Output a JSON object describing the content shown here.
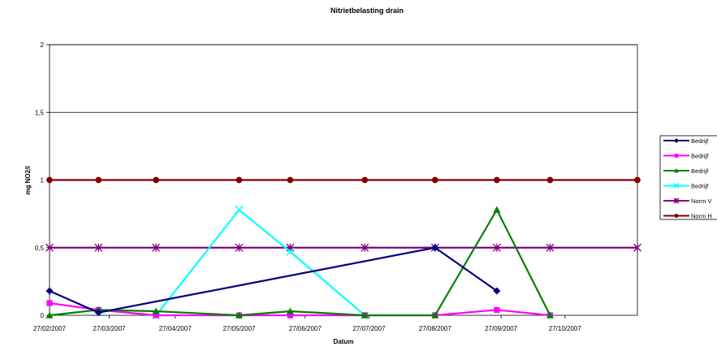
{
  "chart_data": {
    "type": "line",
    "title": "Nitrietbelasting drain",
    "xlabel": "Datum",
    "ylabel": "mg NO2/l",
    "ylim": [
      0,
      2
    ],
    "yticks": [
      "0",
      "0,5",
      "1",
      "1,5",
      "2"
    ],
    "xlim": [
      "2007-02-27",
      "2007-11-30"
    ],
    "xticks": [
      "27/02/2007",
      "27/03/2007",
      "27/04/2007",
      "27/05/2007",
      "27/06/2007",
      "27/07/2007",
      "27/08/2007",
      "27/09/2007",
      "27/10/2007"
    ],
    "grid": "horizontal",
    "legend_position": "right",
    "series": [
      {
        "name": "Bedrijf",
        "color": "#000080",
        "marker": "diamond",
        "x": [
          "2007-02-27",
          "2007-03-22",
          "2007-08-27",
          "2007-09-25"
        ],
        "y": [
          0.18,
          0.02,
          0.5,
          0.18
        ]
      },
      {
        "name": "Bedrijf",
        "color": "#ff00ff",
        "marker": "square",
        "x": [
          "2007-02-27",
          "2007-03-22",
          "2007-04-18",
          "2007-05-27",
          "2007-06-20",
          "2007-07-25",
          "2007-08-27",
          "2007-09-25",
          "2007-10-20"
        ],
        "y": [
          0.09,
          0.04,
          0.0,
          0.0,
          0.0,
          0.0,
          0.0,
          0.04,
          0.0
        ]
      },
      {
        "name": "Bedrijf",
        "color": "#008000",
        "marker": "triangle",
        "x": [
          "2007-02-27",
          "2007-03-22",
          "2007-04-18",
          "2007-05-27",
          "2007-06-20",
          "2007-07-25",
          "2007-08-27",
          "2007-09-25",
          "2007-10-20"
        ],
        "y": [
          0.0,
          0.04,
          0.03,
          0.0,
          0.03,
          0.0,
          0.0,
          0.78,
          0.0
        ]
      },
      {
        "name": "Bedrijf",
        "color": "#00ffff",
        "marker": "x",
        "x": [
          "2007-04-18",
          "2007-05-27",
          "2007-06-20",
          "2007-07-25"
        ],
        "y": [
          0.0,
          0.78,
          0.47,
          0.0
        ]
      },
      {
        "name": "Norm V",
        "color": "#800080",
        "marker": "star",
        "x": [
          "2007-02-27",
          "2007-03-22",
          "2007-04-18",
          "2007-05-27",
          "2007-06-20",
          "2007-07-25",
          "2007-08-27",
          "2007-09-25",
          "2007-10-20",
          "2007-11-30"
        ],
        "y": [
          0.5,
          0.5,
          0.5,
          0.5,
          0.5,
          0.5,
          0.5,
          0.5,
          0.5,
          0.5
        ]
      },
      {
        "name": "Norm H",
        "color": "#800000",
        "marker": "circle",
        "x": [
          "2007-02-27",
          "2007-03-22",
          "2007-04-18",
          "2007-05-27",
          "2007-06-20",
          "2007-07-25",
          "2007-08-27",
          "2007-09-25",
          "2007-10-20",
          "2007-11-30"
        ],
        "y": [
          1.0,
          1.0,
          1.0,
          1.0,
          1.0,
          1.0,
          1.0,
          1.0,
          1.0,
          1.0
        ]
      }
    ]
  }
}
